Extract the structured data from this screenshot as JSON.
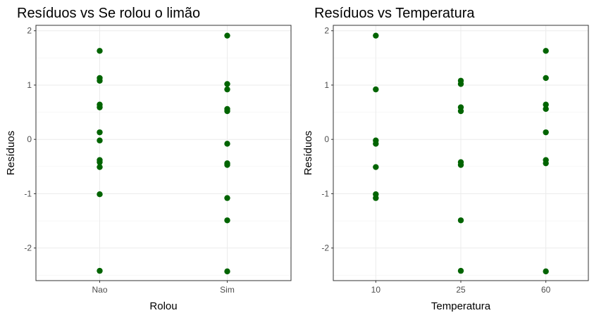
{
  "chart_data": [
    {
      "type": "scatter",
      "title": "Resíduos vs Se rolou o limão",
      "xlabel": "Rolou",
      "ylabel": "Resíduos",
      "x_type": "categorical",
      "categories": [
        "Nao",
        "Sim"
      ],
      "ylim": [
        -2.6,
        2.1
      ],
      "yticks": [
        -2,
        -1,
        0,
        1,
        2
      ],
      "grid": true,
      "point_color": "#006400",
      "points": [
        {
          "x": "Nao",
          "y": 1.63
        },
        {
          "x": "Nao",
          "y": 1.13
        },
        {
          "x": "Nao",
          "y": 1.08
        },
        {
          "x": "Nao",
          "y": 0.64
        },
        {
          "x": "Nao",
          "y": 0.59
        },
        {
          "x": "Nao",
          "y": 0.13
        },
        {
          "x": "Nao",
          "y": -0.02
        },
        {
          "x": "Nao",
          "y": -0.38
        },
        {
          "x": "Nao",
          "y": -0.42
        },
        {
          "x": "Nao",
          "y": -0.51
        },
        {
          "x": "Nao",
          "y": -1.01
        },
        {
          "x": "Nao",
          "y": -2.42
        },
        {
          "x": "Sim",
          "y": 1.91
        },
        {
          "x": "Sim",
          "y": 1.02
        },
        {
          "x": "Sim",
          "y": 0.92
        },
        {
          "x": "Sim",
          "y": 0.56
        },
        {
          "x": "Sim",
          "y": 0.52
        },
        {
          "x": "Sim",
          "y": -0.08
        },
        {
          "x": "Sim",
          "y": -0.44
        },
        {
          "x": "Sim",
          "y": -0.47
        },
        {
          "x": "Sim",
          "y": -1.08
        },
        {
          "x": "Sim",
          "y": -1.49
        },
        {
          "x": "Sim",
          "y": -2.43
        }
      ]
    },
    {
      "type": "scatter",
      "title": "Resíduos vs Temperatura",
      "xlabel": "Temperatura",
      "ylabel": "Resíduos",
      "x_type": "categorical",
      "categories": [
        "10",
        "25",
        "60"
      ],
      "ylim": [
        -2.6,
        2.1
      ],
      "yticks": [
        -2,
        -1,
        0,
        1,
        2
      ],
      "grid": true,
      "point_color": "#006400",
      "points": [
        {
          "x": "10",
          "y": 1.91
        },
        {
          "x": "10",
          "y": 0.92
        },
        {
          "x": "10",
          "y": -0.02
        },
        {
          "x": "10",
          "y": -0.08
        },
        {
          "x": "10",
          "y": -0.51
        },
        {
          "x": "10",
          "y": -1.01
        },
        {
          "x": "10",
          "y": -1.08
        },
        {
          "x": "25",
          "y": 1.08
        },
        {
          "x": "25",
          "y": 1.02
        },
        {
          "x": "25",
          "y": 0.59
        },
        {
          "x": "25",
          "y": 0.52
        },
        {
          "x": "25",
          "y": -0.42
        },
        {
          "x": "25",
          "y": -0.47
        },
        {
          "x": "25",
          "y": -1.49
        },
        {
          "x": "25",
          "y": -2.42
        },
        {
          "x": "60",
          "y": 1.63
        },
        {
          "x": "60",
          "y": 1.13
        },
        {
          "x": "60",
          "y": 0.64
        },
        {
          "x": "60",
          "y": 0.56
        },
        {
          "x": "60",
          "y": 0.13
        },
        {
          "x": "60",
          "y": -0.38
        },
        {
          "x": "60",
          "y": -0.44
        },
        {
          "x": "60",
          "y": -2.43
        }
      ]
    }
  ]
}
